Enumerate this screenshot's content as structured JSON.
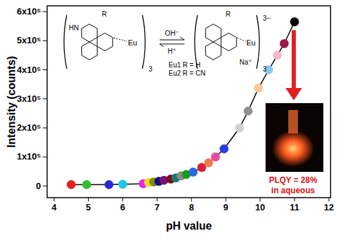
{
  "chart_data": {
    "type": "line",
    "marker": "circle",
    "color": "#000000",
    "x_label": "pH value",
    "y_label": "Intensity (counts)",
    "x": [
      4.5,
      4.95,
      5.6,
      6.0,
      6.6,
      6.75,
      6.9,
      7.05,
      7.2,
      7.4,
      7.55,
      7.7,
      7.85,
      8.05,
      8.3,
      8.5,
      8.7,
      8.95,
      9.4,
      9.65,
      9.95,
      10.25,
      10.5,
      10.7,
      11.0
    ],
    "values": [
      5000,
      5000,
      5000,
      6000,
      8000,
      12000,
      14000,
      16000,
      20000,
      24000,
      28000,
      35000,
      40000,
      48000,
      64000,
      80000,
      100000,
      128000,
      200000,
      258000,
      337000,
      400000,
      450000,
      490000,
      565000
    ],
    "colors": [
      "#e8201c",
      "#2ec02e",
      "#2a2ad8",
      "#22c8e0",
      "#ee22ee",
      "#e8e020",
      "#8a8a10",
      "#12127a",
      "#7a127a",
      "#7a1212",
      "#127a7a",
      "#8a8a8a",
      "#1a9a1a",
      "#2a6ae0",
      "#d8203a",
      "#f07a4a",
      "#e84aa0",
      "#2a3ae8",
      "#d0d0d0",
      "#909090",
      "#f8c89a",
      "#8ac8f0",
      "#f0b8c8",
      "#9a1a4a",
      "#000000"
    ],
    "xlim": [
      3.8,
      12.05
    ],
    "ylim": [
      -40000,
      620000
    ],
    "xticks": [
      4,
      5,
      6,
      7,
      8,
      9,
      10,
      11,
      12
    ],
    "yticks": [
      0,
      {
        "value": 100000,
        "label": "1x10⁵"
      },
      {
        "value": 200000,
        "label": "2x10⁵"
      },
      {
        "value": 300000,
        "label": "3x10⁵"
      },
      {
        "value": 400000,
        "label": "4x10⁵"
      },
      {
        "value": 500000,
        "label": "5x10⁵"
      },
      {
        "value": 600000,
        "label": "6x10⁵"
      }
    ],
    "grid": false,
    "annotations": [
      "HN",
      "R",
      "Eu",
      "3",
      "OH⁻",
      "H⁺",
      "R",
      "Eu",
      "3−",
      "Na⁺",
      "3",
      "Eu1 R = H",
      "Eu2 R = CN",
      "PLQY = 28%",
      "in aqueous"
    ]
  }
}
